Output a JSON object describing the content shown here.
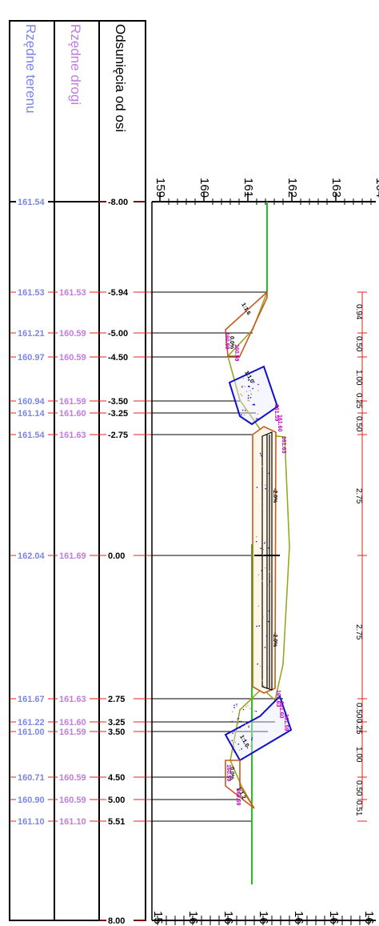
{
  "table": {
    "header_offsets": "Odsunięcia od osi",
    "header_road": "Rzędne drogi",
    "header_terrain": "Rzędne terenu",
    "rows": [
      {
        "offset": "-8.00",
        "road": "",
        "terrain": "161.54"
      },
      {
        "offset": "-5.94",
        "road": "161.53",
        "terrain": "161.53"
      },
      {
        "offset": "-5.00",
        "road": "160.59",
        "terrain": "161.21"
      },
      {
        "offset": "-4.50",
        "road": "160.59",
        "terrain": "160.97"
      },
      {
        "offset": "-3.50",
        "road": "161.59",
        "terrain": "160.94"
      },
      {
        "offset": "-3.25",
        "road": "161.60",
        "terrain": "161.14"
      },
      {
        "offset": "-2.75",
        "road": "161.63",
        "terrain": "161.54"
      },
      {
        "offset": "0.00",
        "road": "161.69",
        "terrain": "162.04"
      },
      {
        "offset": "2.75",
        "road": "161.63",
        "terrain": "161.67"
      },
      {
        "offset": "3.25",
        "road": "161.60",
        "terrain": "161.22"
      },
      {
        "offset": "3.50",
        "road": "161.59",
        "terrain": "161.00"
      },
      {
        "offset": "4.50",
        "road": "160.59",
        "terrain": "160.71"
      },
      {
        "offset": "5.00",
        "road": "160.59",
        "terrain": "160.90"
      },
      {
        "offset": "5.51",
        "road": "161.10",
        "terrain": "161.10"
      },
      {
        "offset": "8.00",
        "road": "",
        "terrain": ""
      }
    ]
  },
  "elevation_axis": {
    "ticks_top": [
      "159",
      "160",
      "161",
      "162",
      "163",
      "164"
    ],
    "ticks_bottom": [
      "15",
      "16",
      "16",
      "16",
      "16",
      "16",
      "16"
    ]
  },
  "dimensions": [
    "0.94",
    "0.50",
    "1.00",
    "0.25",
    "0.50",
    "2.75",
    "2.75",
    "0.50",
    "0.25",
    "1.00",
    "0.50",
    "0.51"
  ],
  "profile_labels": {
    "slopes": [
      "1:1.6",
      "1:1.0",
      "1:1.0",
      "1:1.2"
    ],
    "crossfall": [
      "-2.0%",
      "-2.0%"
    ],
    "ditch": [
      "0.0%",
      "0.0%"
    ],
    "point_elev": [
      "160.59",
      "160.59",
      "161.59",
      "161.60",
      "161.63",
      "161.63",
      "161.60",
      "161.59",
      "160.59",
      "160.59"
    ]
  },
  "colors": {
    "terrain": "#7b86e6",
    "road": "#c27be0",
    "offset": "#000000",
    "tick_mark": "#e02020",
    "ground_line": "#22c022",
    "embankment": "#9aa620",
    "structure": "#c85a20",
    "ditch_fill": "#1010c8",
    "labels": "#c000c0"
  }
}
